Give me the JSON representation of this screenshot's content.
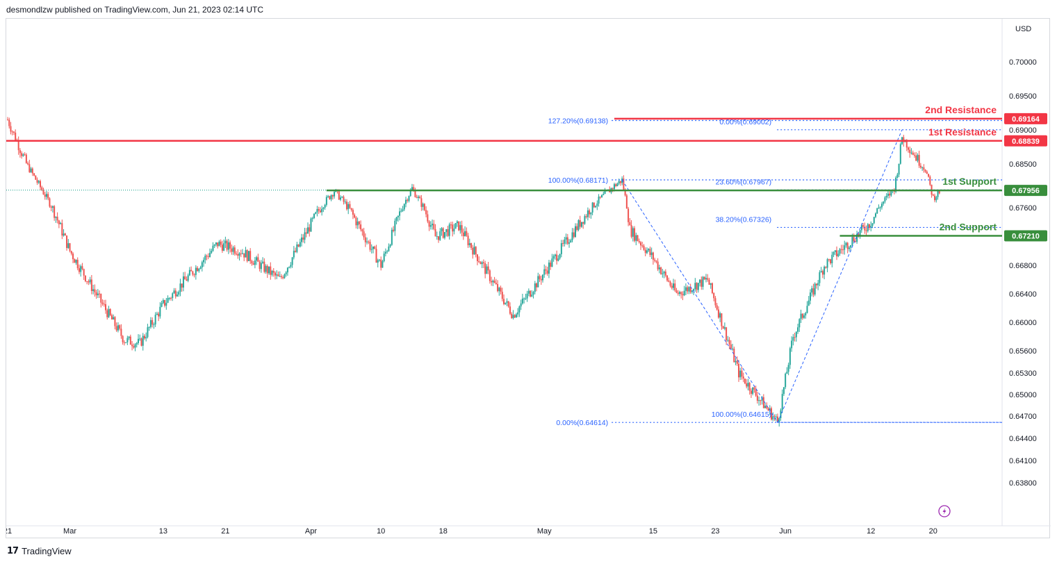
{
  "header": {
    "publisher": "desmondlzw published on TradingView.com, Jun 21, 2023 02:14 UTC"
  },
  "branding": {
    "logo_mark": "17",
    "logo_text": "TradingView"
  },
  "colors": {
    "candle_up": "#26a69a",
    "candle_down": "#ef5350",
    "resistance": "#f23645",
    "support": "#388e3c",
    "fib": "#2962ff",
    "fib_text": "#2962ff",
    "current_price_line": "#089981",
    "flash_icon": "#9c27b0"
  },
  "icons": {
    "flash": "lightning-circle-icon"
  },
  "chart_data": {
    "type": "candlestick",
    "currency_label": "USD",
    "y_ticks": [
      "0.70000",
      "0.69500",
      "0.69000",
      "0.68500",
      "0.67600",
      "0.66800",
      "0.66400",
      "0.66000",
      "0.65600",
      "0.65300",
      "0.65000",
      "0.64700",
      "0.64400",
      "0.64100",
      "0.63800"
    ],
    "x_ticks": [
      "21",
      "Mar",
      "13",
      "21",
      "Apr",
      "10",
      "18",
      "May",
      "15",
      "23",
      "Jun",
      "12",
      "20"
    ],
    "levels": [
      {
        "name": "2nd Resistance",
        "value": 0.69164,
        "label": "0.69164",
        "kind": "resistance"
      },
      {
        "name": "1st Resistance",
        "value": 0.68839,
        "label": "0.68839",
        "kind": "resistance"
      },
      {
        "name": "1st Support",
        "value": 0.67956,
        "label": "0.67956",
        "kind": "support"
      },
      {
        "name": "2nd Support",
        "value": 0.6721,
        "label": "0.67210",
        "kind": "support"
      }
    ],
    "fib_left": [
      {
        "label": "127.20%(0.69138)",
        "value": 0.69138
      },
      {
        "label": "100.00%(0.68171)",
        "value": 0.68171
      },
      {
        "label": "0.00%(0.64614)",
        "value": 0.64614
      }
    ],
    "fib_right": [
      {
        "label": "0.00%(0.69002)",
        "value": 0.69002
      },
      {
        "label": "23.60%(0.67967)",
        "value": 0.67967
      },
      {
        "label": "38.20%(0.67326)",
        "value": 0.67326
      },
      {
        "label": "100.00%(0.64615)",
        "value": 0.64615
      }
    ],
    "key_prices": [
      {
        "date": "Feb 21",
        "price": 0.6915
      },
      {
        "date": "Mar 1",
        "price": 0.67
      },
      {
        "date": "Mar 8",
        "price": 0.6575
      },
      {
        "date": "Mar 10",
        "price": 0.657
      },
      {
        "date": "Mar 13",
        "price": 0.6625
      },
      {
        "date": "Mar 20",
        "price": 0.671
      },
      {
        "date": "Mar 23",
        "price": 0.67
      },
      {
        "date": "Mar 28",
        "price": 0.666
      },
      {
        "date": "Apr 4",
        "price": 0.6795
      },
      {
        "date": "Apr 10",
        "price": 0.668
      },
      {
        "date": "Apr 14",
        "price": 0.68
      },
      {
        "date": "Apr 17",
        "price": 0.672
      },
      {
        "date": "Apr 20",
        "price": 0.6735
      },
      {
        "date": "Apr 27",
        "price": 0.661
      },
      {
        "date": "May 3",
        "price": 0.67
      },
      {
        "date": "May 10",
        "price": 0.6805
      },
      {
        "date": "May 11",
        "price": 0.6817
      },
      {
        "date": "May 12",
        "price": 0.673
      },
      {
        "date": "May 15",
        "price": 0.669
      },
      {
        "date": "May 18",
        "price": 0.664
      },
      {
        "date": "May 22",
        "price": 0.666
      },
      {
        "date": "May 26",
        "price": 0.653
      },
      {
        "date": "May 31",
        "price": 0.6462
      },
      {
        "date": "Jun 2",
        "price": 0.658
      },
      {
        "date": "Jun 6",
        "price": 0.668
      },
      {
        "date": "Jun 12",
        "price": 0.674
      },
      {
        "date": "Jun 15",
        "price": 0.68
      },
      {
        "date": "Jun 16",
        "price": 0.689
      },
      {
        "date": "Jun 19",
        "price": 0.684
      },
      {
        "date": "Jun 20",
        "price": 0.678
      },
      {
        "date": "Jun 21",
        "price": 0.6796
      }
    ]
  }
}
